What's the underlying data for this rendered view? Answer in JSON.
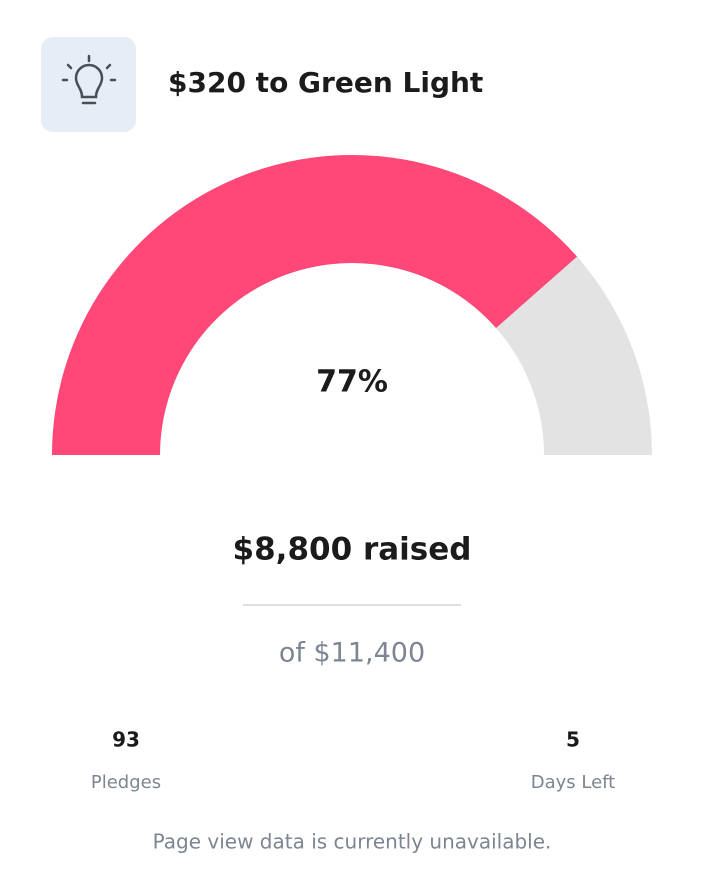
{
  "header": {
    "title": "$320 to Green Light"
  },
  "gauge": {
    "value": 77,
    "label": "77%",
    "lim": [
      0,
      100
    ],
    "color": "#ff4778",
    "track_color": "#e3e3e3"
  },
  "raised": "$8,800 raised",
  "goal": "of $11,400",
  "stats": [
    {
      "value": "93",
      "label": "Pledges"
    },
    {
      "value": "5",
      "label": "Days Left"
    }
  ],
  "footer": "Page view data is currently unavailable."
}
